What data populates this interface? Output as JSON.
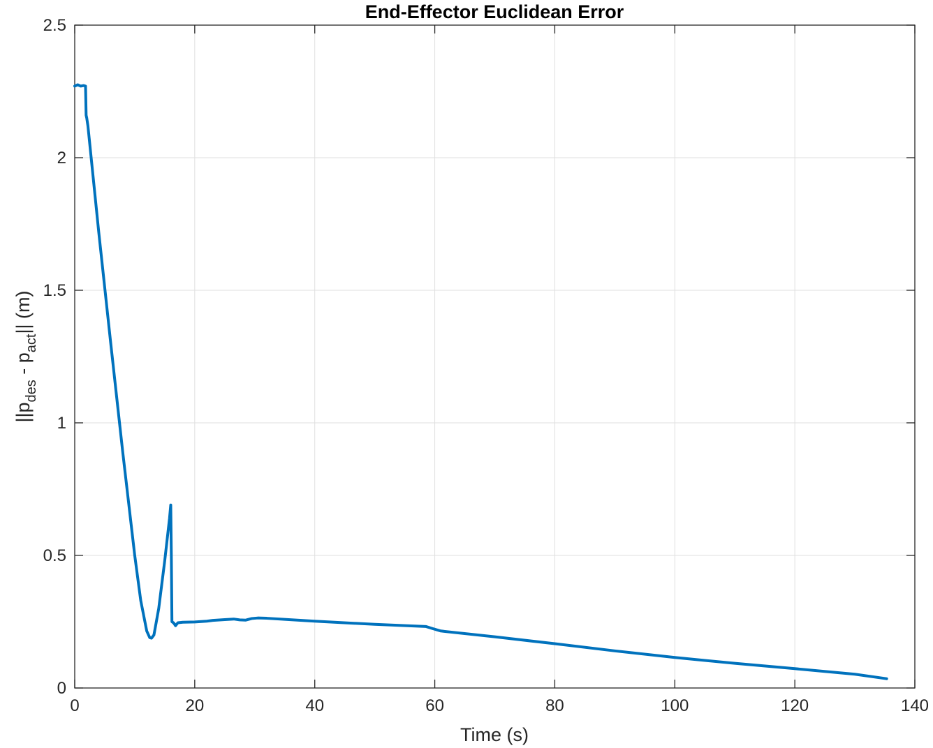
{
  "chart_data": {
    "type": "line",
    "title": "End-Effector Euclidean Error",
    "xlabel": "Time (s)",
    "ylabel": {
      "prefix": "||p",
      "sub1": "des",
      "middle": " - p",
      "sub2": "act",
      "suffix": "|| (m)"
    },
    "xlim": [
      0,
      140
    ],
    "ylim": [
      0,
      2.5
    ],
    "x_ticks": [
      0,
      20,
      40,
      60,
      80,
      100,
      120,
      140
    ],
    "y_ticks": [
      0,
      0.5,
      1,
      1.5,
      2,
      2.5
    ],
    "x_tick_labels": [
      "0",
      "20",
      "40",
      "60",
      "80",
      "100",
      "120",
      "140"
    ],
    "y_tick_labels": [
      "0",
      "0.5",
      "1",
      "1.5",
      "2",
      "2.5"
    ],
    "grid": true,
    "line_color": "#0072BD",
    "series": [
      {
        "x": [
          0,
          0.5,
          1.0,
          1.5,
          1.8,
          1.9,
          2.0,
          2.2,
          4,
          6,
          8,
          10,
          11,
          12,
          12.5,
          12.8,
          13.2,
          14,
          15,
          15.8,
          16.0,
          16.1,
          16.2,
          16.5,
          16.8,
          17.2,
          18,
          20,
          22,
          23,
          25,
          26.5,
          27.5,
          28.5,
          29.5,
          30.5,
          32,
          40,
          50,
          58.5,
          59.5,
          61,
          70,
          80,
          90,
          100,
          110,
          120,
          130,
          135.3
        ],
        "y": [
          2.27,
          2.275,
          2.27,
          2.272,
          2.27,
          2.16,
          2.15,
          2.12,
          1.72,
          1.3,
          0.89,
          0.5,
          0.33,
          0.215,
          0.19,
          0.188,
          0.2,
          0.3,
          0.48,
          0.64,
          0.69,
          0.5,
          0.25,
          0.245,
          0.235,
          0.246,
          0.248,
          0.249,
          0.252,
          0.255,
          0.258,
          0.26,
          0.257,
          0.256,
          0.262,
          0.264,
          0.263,
          0.252,
          0.24,
          0.232,
          0.225,
          0.215,
          0.193,
          0.167,
          0.14,
          0.115,
          0.093,
          0.073,
          0.052,
          0.035
        ]
      }
    ]
  }
}
